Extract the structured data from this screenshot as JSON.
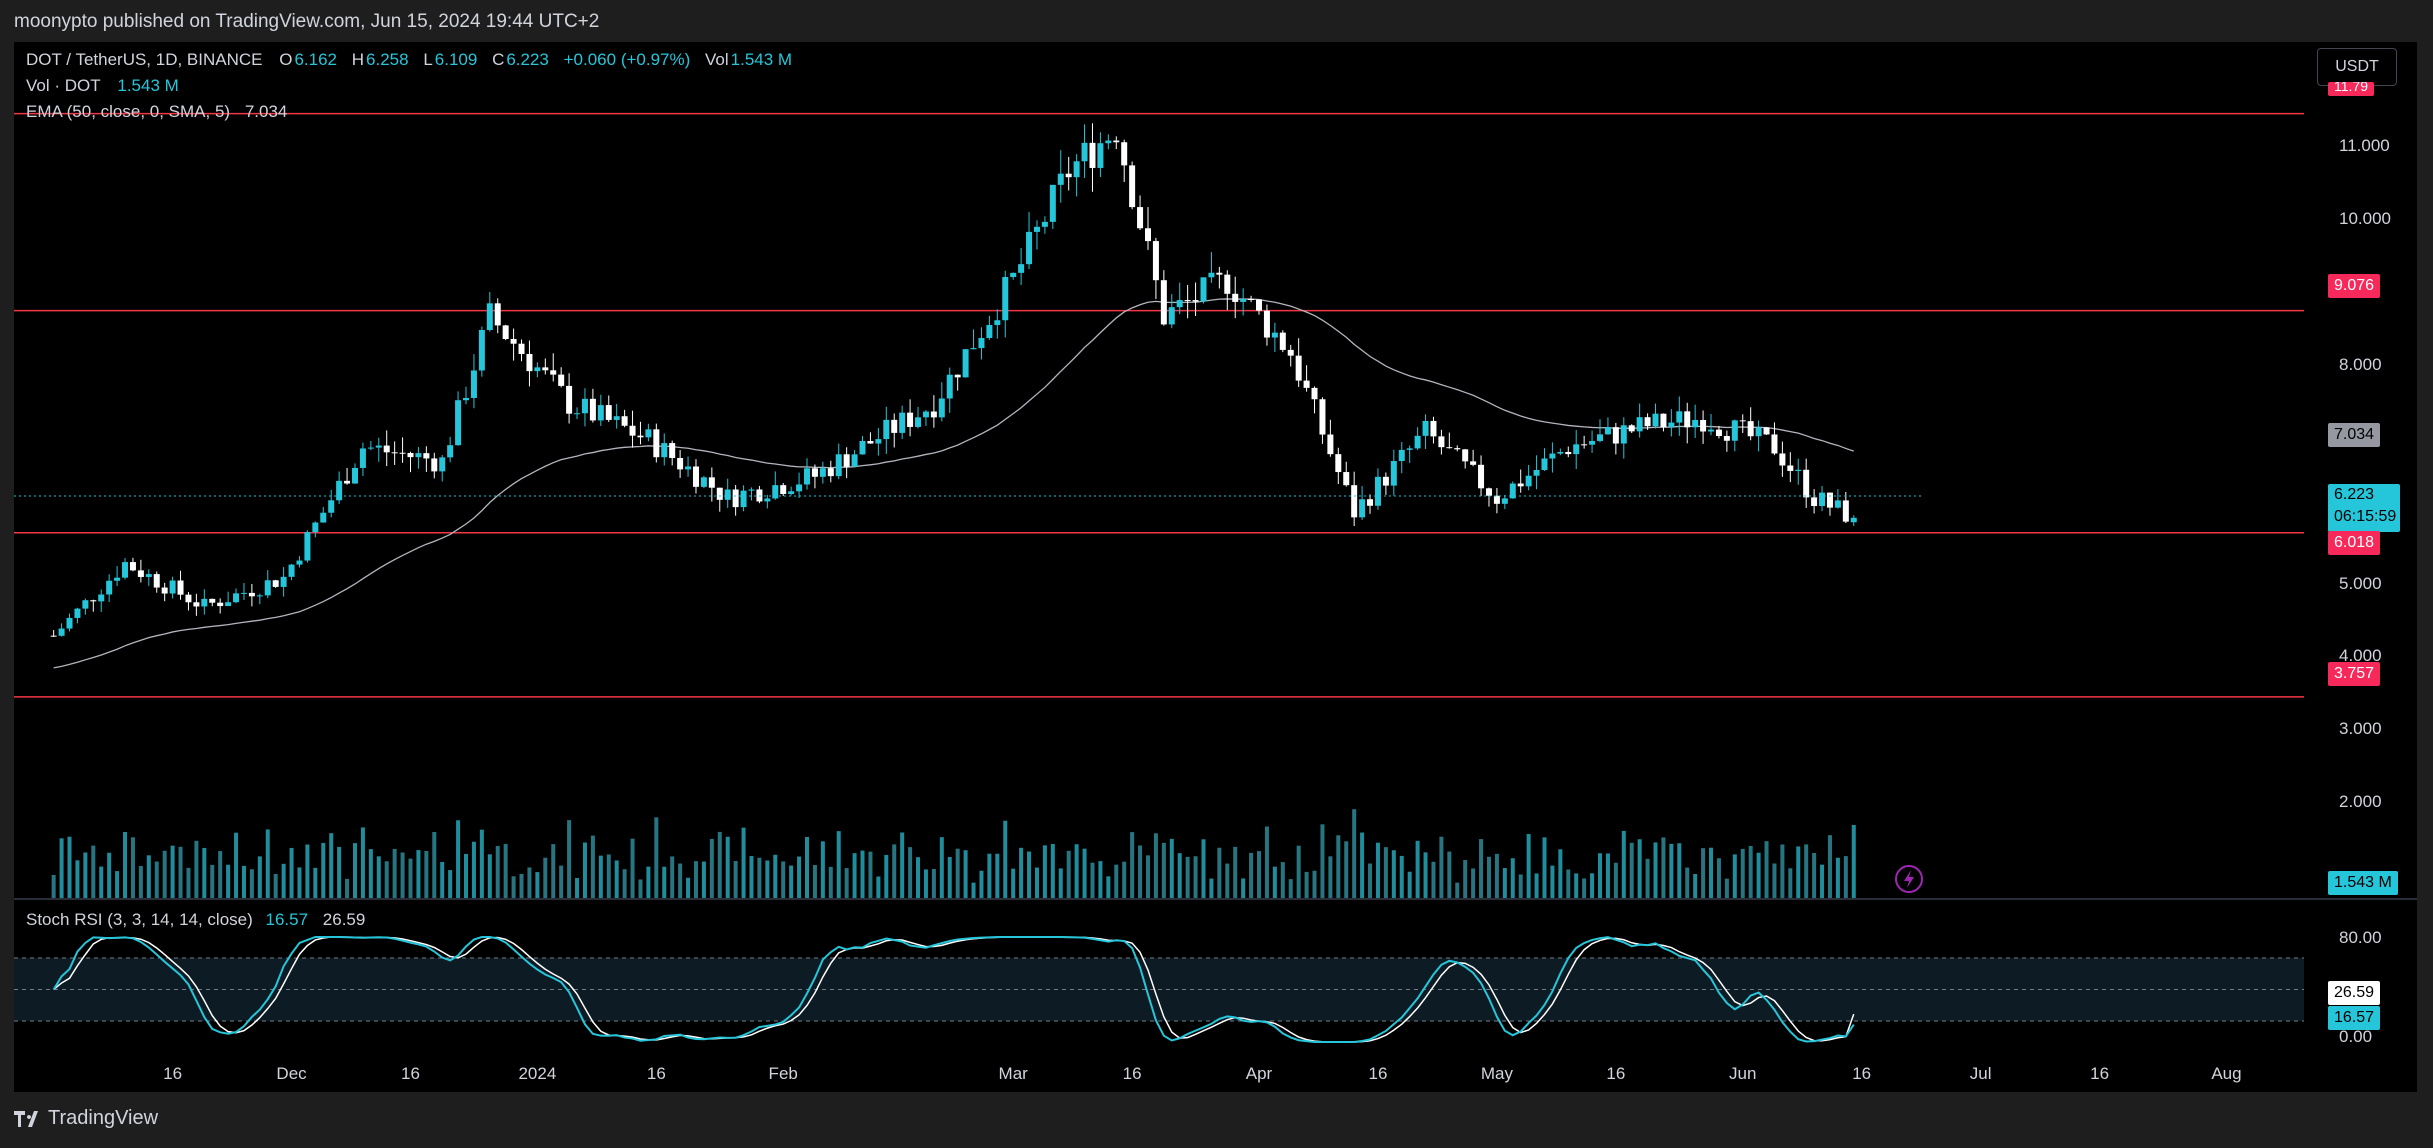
{
  "header": {
    "published_text": "moonypto published on TradingView.com, Jun 15, 2024 19:44 UTC+2"
  },
  "legend": {
    "symbol": "DOT / TetherUS, 1D, BINANCE",
    "open_label": "O",
    "open": "6.162",
    "high_label": "H",
    "high": "6.258",
    "low_label": "L",
    "low": "6.109",
    "close_label": "C",
    "close": "6.223",
    "change": "+0.060 (+0.97%)",
    "vol_label": "Vol",
    "vol": "1.543 M",
    "vol_row_label": "Vol · DOT",
    "vol_row_value": "1.543 M",
    "ema_label": "EMA (50, close, 0, SMA, 5)",
    "ema_value": "7.034",
    "stoch_label": "Stoch RSI (3, 3, 14, 14, close)",
    "stoch_k": "16.57",
    "stoch_d": "26.59"
  },
  "currency_button": "USDT",
  "price_axis": {
    "ticks": [
      "11.000",
      "10.000",
      "8.000",
      "5.000",
      "4.000",
      "3.000",
      "2.000"
    ],
    "top_label": "11.79"
  },
  "price_pills": {
    "level_9076": "9.076",
    "ema": "7.034",
    "last": "6.223",
    "countdown": "06:15:59",
    "level_6018": "6.018",
    "level_3757": "3.757",
    "volume": "1.543 M"
  },
  "stoch_axis": {
    "ticks": [
      "80.00",
      "0.00"
    ],
    "d_pill": "26.59",
    "k_pill": "16.57"
  },
  "time_axis": [
    "16",
    "Dec",
    "16",
    "2024",
    "16",
    "Feb",
    "Mar",
    "16",
    "Apr",
    "16",
    "May",
    "16",
    "Jun",
    "16",
    "Jul",
    "16",
    "Aug"
  ],
  "footer": {
    "brand": "TradingView"
  },
  "colors": {
    "up": "#26c6da",
    "down": "#ffffff",
    "level_line": "#f23645",
    "ema_line": "#b2b5be",
    "stoch_k": "#26c6da",
    "stoch_d": "#ffffff",
    "pill_red": "#f7285a",
    "pill_gray": "#9598a1"
  },
  "chart_data": {
    "type": "candlestick",
    "symbol": "DOT / TetherUS",
    "interval": "1D",
    "exchange": "BINANCE",
    "last_bar": {
      "open": 6.162,
      "high": 6.258,
      "low": 6.109,
      "close": 6.223,
      "change": 0.06,
      "change_pct": 0.97,
      "volume_m": 1.543
    },
    "horizontal_levels": [
      11.79,
      9.076,
      6.018,
      3.757
    ],
    "ema_50_last": 7.034,
    "stoch_rsi": {
      "k": 16.57,
      "d": 26.59,
      "upper": 80,
      "lower": 20
    },
    "approx_path": {
      "dates": [
        "2023-11-01",
        "2023-11-10",
        "2023-11-20",
        "2023-11-30",
        "2023-12-10",
        "2023-12-20",
        "2023-12-26",
        "2024-01-05",
        "2024-01-15",
        "2024-01-25",
        "2024-02-05",
        "2024-02-20",
        "2024-03-01",
        "2024-03-08",
        "2024-03-14",
        "2024-03-20",
        "2024-03-28",
        "2024-04-05",
        "2024-04-13",
        "2024-04-22",
        "2024-05-01",
        "2024-05-10",
        "2024-05-20",
        "2024-05-27",
        "2024-06-05",
        "2024-06-10",
        "2024-06-15"
      ],
      "close": [
        4.6,
        5.6,
        5.0,
        5.4,
        7.2,
        7.0,
        9.0,
        7.8,
        7.3,
        6.5,
        6.8,
        7.8,
        9.5,
        11.0,
        11.6,
        9.0,
        9.5,
        8.5,
        6.3,
        7.4,
        6.5,
        7.2,
        7.5,
        7.6,
        7.2,
        6.5,
        6.223
      ]
    }
  }
}
